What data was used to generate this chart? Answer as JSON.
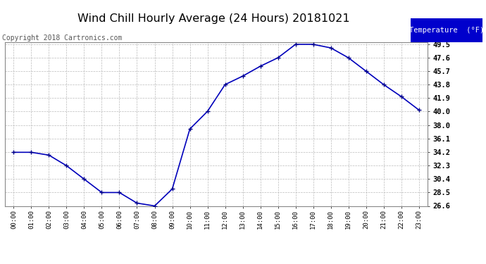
{
  "title": "Wind Chill Hourly Average (24 Hours) 20181021",
  "copyright": "Copyright 2018 Cartronics.com",
  "legend_label": "Temperature  (°F)",
  "x_labels": [
    "00:00",
    "01:00",
    "02:00",
    "03:00",
    "04:00",
    "05:00",
    "06:00",
    "07:00",
    "08:00",
    "09:00",
    "10:00",
    "11:00",
    "12:00",
    "13:00",
    "14:00",
    "15:00",
    "16:00",
    "17:00",
    "18:00",
    "19:00",
    "20:00",
    "21:00",
    "22:00",
    "23:00"
  ],
  "y_values": [
    34.2,
    34.2,
    33.8,
    32.3,
    30.4,
    28.5,
    28.5,
    27.0,
    26.6,
    29.0,
    37.5,
    40.0,
    43.8,
    45.0,
    46.4,
    47.6,
    49.5,
    49.5,
    49.0,
    47.6,
    45.7,
    43.8,
    42.1,
    40.2
  ],
  "y_ticks": [
    26.6,
    28.5,
    30.4,
    32.3,
    34.2,
    36.1,
    38.0,
    40.0,
    41.9,
    43.8,
    45.7,
    47.6,
    49.5
  ],
  "ylim_min": 26.6,
  "ylim_max": 49.5,
  "line_color": "#0000bb",
  "marker_color": "#000088",
  "bg_color": "#ffffff",
  "grid_color": "#bbbbbb",
  "title_fontsize": 11.5,
  "copyright_fontsize": 7,
  "legend_bg": "#0000cc",
  "legend_text_color": "#ffffff"
}
